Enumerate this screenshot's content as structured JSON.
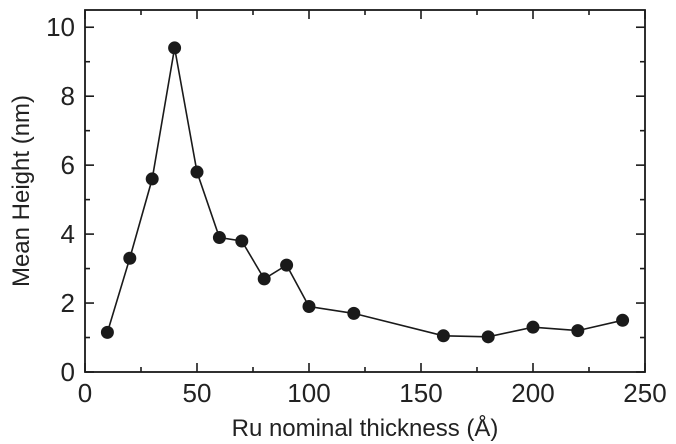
{
  "chart_data": {
    "type": "scatter",
    "xlabel": "Ru nominal thickness (Å)",
    "ylabel": "Mean Height (nm)",
    "xlim": [
      0,
      250
    ],
    "ylim": [
      0,
      10.5
    ],
    "xticks": [
      0,
      50,
      100,
      150,
      200,
      250
    ],
    "yticks": [
      0,
      2,
      4,
      6,
      8,
      10
    ],
    "grid": false,
    "series": [
      {
        "style": "line-with-markers",
        "color": "#1a1a1a",
        "x": [
          10,
          20,
          30,
          40,
          50,
          60,
          70,
          80,
          90,
          100,
          120,
          160,
          180,
          200,
          220,
          240
        ],
        "y": [
          1.15,
          3.3,
          5.6,
          9.4,
          5.8,
          3.9,
          3.8,
          2.7,
          3.1,
          1.9,
          1.7,
          1.05,
          1.02,
          1.3,
          1.2,
          1.5
        ]
      }
    ]
  }
}
